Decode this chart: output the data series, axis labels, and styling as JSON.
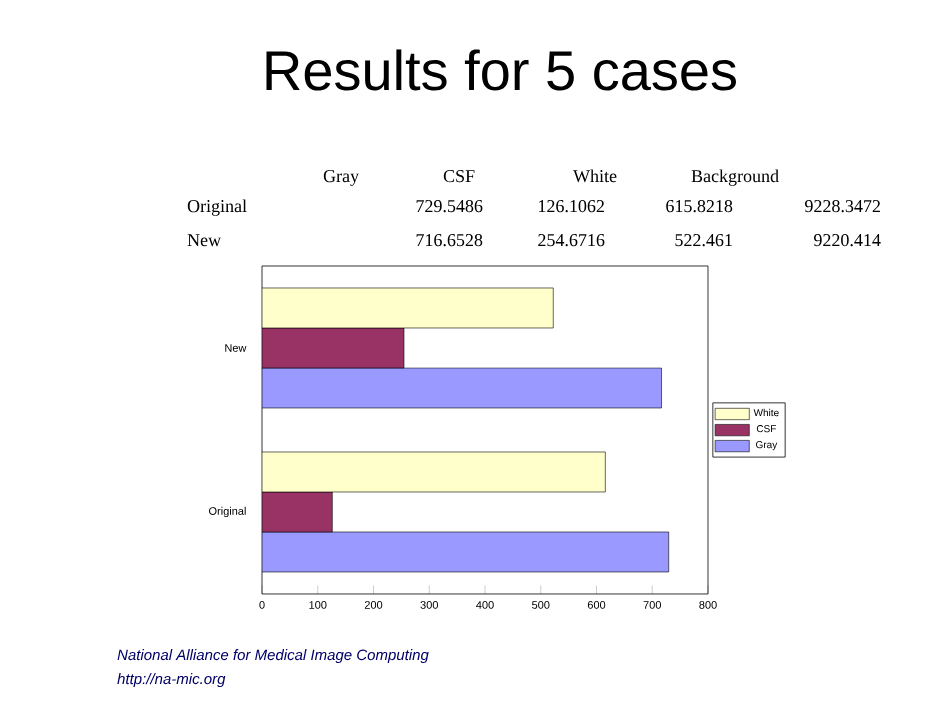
{
  "chart_data": {
    "type": "bar",
    "orientation": "horizontal",
    "title": "Results for 5 cases",
    "categories": [
      "New",
      "Original"
    ],
    "series": [
      {
        "name": "Gray",
        "color": "#9999ff",
        "values": [
          716.6528,
          729.5486
        ]
      },
      {
        "name": "CSF",
        "color": "#993366",
        "values": [
          254.6716,
          126.1062
        ]
      },
      {
        "name": "White",
        "color": "#ffffcc",
        "values": [
          522.461,
          615.8218
        ]
      }
    ],
    "xlim": [
      0,
      800
    ],
    "xticks": [
      0,
      100,
      200,
      300,
      400,
      500,
      600,
      700,
      800
    ],
    "legend": "right",
    "annotations": [
      "Background",
      "729.5486",
      "126.1062",
      "615.8218",
      "9228.3472",
      "716.6528",
      "254.6716",
      "522.461",
      "9220.414",
      "National Alliance for Medical Image Computing",
      "http://na-mic.org"
    ]
  }
}
